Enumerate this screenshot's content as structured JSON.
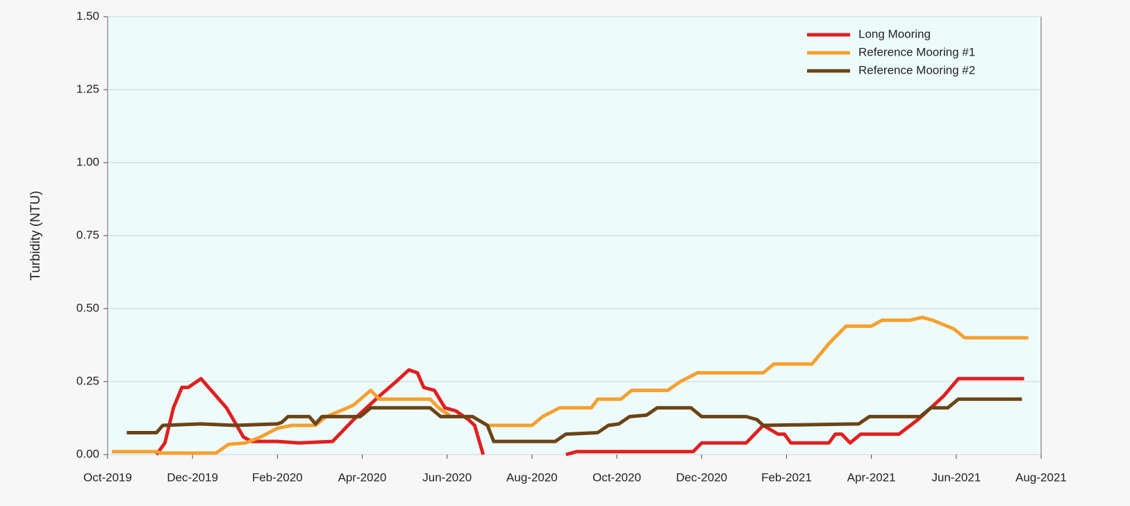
{
  "chart_data": {
    "type": "line",
    "y_label": "Turbidity (NTU)",
    "xlim": [
      0,
      22
    ],
    "xticks": [
      {
        "value": 0,
        "label": "Oct-2019"
      },
      {
        "value": 2,
        "label": "Dec-2019"
      },
      {
        "value": 4,
        "label": "Feb-2020"
      },
      {
        "value": 6,
        "label": "Apr-2020"
      },
      {
        "value": 8,
        "label": "Jun-2020"
      },
      {
        "value": 10,
        "label": "Aug-2020"
      },
      {
        "value": 12,
        "label": "Oct-2020"
      },
      {
        "value": 14,
        "label": "Dec-2020"
      },
      {
        "value": 16,
        "label": "Feb-2021"
      },
      {
        "value": 18,
        "label": "Apr-2021"
      },
      {
        "value": 20,
        "label": "Jun-2021"
      },
      {
        "value": 22,
        "label": "Aug-2021"
      }
    ],
    "ylim": [
      0,
      1.5
    ],
    "yticks": [
      {
        "value": 0,
        "label": "0.00"
      },
      {
        "value": 0.25,
        "label": "0.25"
      },
      {
        "value": 0.5,
        "label": "0.50"
      },
      {
        "value": 0.75,
        "label": "0.75"
      },
      {
        "value": 1,
        "label": "1.00"
      },
      {
        "value": 1.25,
        "label": "1.25"
      },
      {
        "value": 1.5,
        "label": "1.50"
      }
    ],
    "grid": true,
    "legend": "upper right",
    "series": [
      {
        "name": "Long Mooring",
        "color": "#e02020",
        "x": [
          1.15,
          1.35,
          1.55,
          1.75,
          1.9,
          2.2,
          2.8,
          3.2,
          3.4,
          4.0,
          4.5,
          5.3,
          5.8,
          6.4,
          6.8,
          7.1,
          7.3,
          7.45,
          7.7,
          7.95,
          8.2,
          8.5,
          8.65,
          8.85,
          9.5,
          10.8,
          11.05,
          13.8,
          14.0,
          15.05,
          15.45,
          15.8,
          15.95,
          16.1,
          17.0,
          17.15,
          17.3,
          17.5,
          17.75,
          18.65,
          19.1,
          19.7,
          20.05,
          21.6
        ],
        "values": [
          0,
          0.04,
          0.16,
          0.23,
          0.23,
          0.26,
          0.16,
          0.06,
          0.045,
          0.045,
          0.04,
          0.045,
          0.12,
          0.2,
          0.25,
          0.29,
          0.28,
          0.23,
          0.22,
          0.16,
          0.15,
          0.12,
          0.1,
          0,
          null,
          0,
          0.01,
          0.01,
          0.04,
          0.04,
          0.1,
          0.07,
          0.07,
          0.04,
          0.04,
          0.07,
          0.07,
          0.04,
          0.07,
          0.07,
          0.12,
          0.2,
          0.26,
          0.26
        ]
      },
      {
        "name": "Reference Mooring #1",
        "color": "#f5a030",
        "x": [
          0.1,
          1.15,
          1.25,
          2.55,
          2.85,
          3.25,
          3.6,
          4.0,
          4.35,
          4.9,
          5.15,
          5.65,
          5.8,
          6.2,
          6.4,
          7.6,
          7.8,
          8.1,
          8.6,
          8.95,
          10.0,
          10.25,
          10.65,
          11.4,
          11.55,
          12.1,
          12.35,
          13.2,
          13.5,
          13.9,
          15.45,
          15.7,
          16.6,
          17.0,
          17.4,
          18.0,
          18.25,
          18.9,
          19.2,
          19.45,
          19.95,
          20.2,
          21.7
        ],
        "values": [
          0.01,
          0.01,
          0.005,
          0.005,
          0.035,
          0.04,
          0.06,
          0.09,
          0.1,
          0.1,
          0.13,
          0.16,
          0.17,
          0.22,
          0.19,
          0.19,
          0.16,
          0.13,
          0.13,
          0.1,
          0.1,
          0.13,
          0.16,
          0.16,
          0.19,
          0.19,
          0.22,
          0.22,
          0.25,
          0.28,
          0.28,
          0.31,
          0.31,
          0.38,
          0.44,
          0.44,
          0.46,
          0.46,
          0.47,
          0.46,
          0.43,
          0.4,
          0.4
        ]
      },
      {
        "name": "Reference Mooring #2",
        "color": "#6b4416",
        "x": [
          0.45,
          1.15,
          1.3,
          2.2,
          3.0,
          4.0,
          4.1,
          4.25,
          4.75,
          4.9,
          5.05,
          5.95,
          6.2,
          7.6,
          7.85,
          8.6,
          8.95,
          9.1,
          10.55,
          10.8,
          11.55,
          11.8,
          12.05,
          12.3,
          12.7,
          12.95,
          13.75,
          14.0,
          15.05,
          15.3,
          15.45,
          17.7,
          17.95,
          19.15,
          19.4,
          19.8,
          20.05,
          21.55
        ],
        "values": [
          0.075,
          0.075,
          0.1,
          0.105,
          0.1,
          0.105,
          0.11,
          0.13,
          0.13,
          0.105,
          0.13,
          0.13,
          0.16,
          0.16,
          0.13,
          0.13,
          0.1,
          0.045,
          0.045,
          0.07,
          0.075,
          0.1,
          0.105,
          0.13,
          0.135,
          0.16,
          0.16,
          0.13,
          0.13,
          0.12,
          0.1,
          0.105,
          0.13,
          0.13,
          0.16,
          0.16,
          0.19,
          0.19
        ]
      }
    ]
  }
}
